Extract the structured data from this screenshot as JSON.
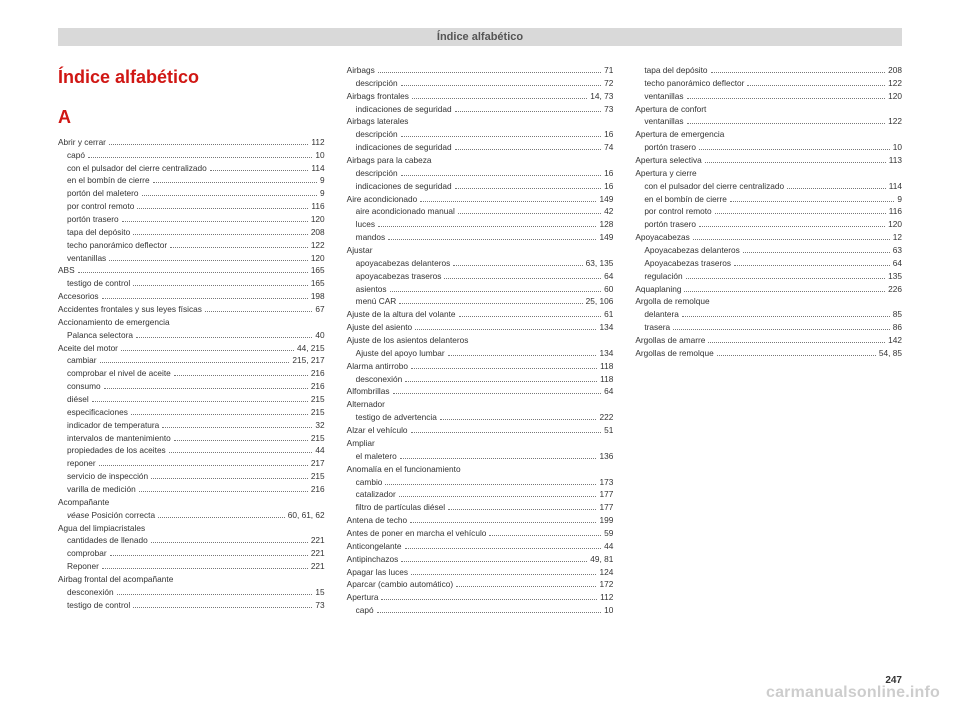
{
  "header": "Índice alfabético",
  "title": "Índice alfabético",
  "section": "A",
  "pagenum": "247",
  "watermark": "carmanualsonline.info",
  "entries": [
    {
      "t": "Abrir y cerrar",
      "p": "112",
      "s": 0
    },
    {
      "t": "capó",
      "p": "10",
      "s": 1
    },
    {
      "t": "con el pulsador del cierre centralizado",
      "p": "114",
      "s": 1
    },
    {
      "t": "en el bombín de cierre",
      "p": "9",
      "s": 1
    },
    {
      "t": "portón del maletero",
      "p": "9",
      "s": 1
    },
    {
      "t": "por control remoto",
      "p": "116",
      "s": 1
    },
    {
      "t": "portón trasero",
      "p": "120",
      "s": 1
    },
    {
      "t": "tapa del depósito",
      "p": "208",
      "s": 1
    },
    {
      "t": "techo panorámico deflector",
      "p": "122",
      "s": 1
    },
    {
      "t": "ventanillas",
      "p": "120",
      "s": 1
    },
    {
      "t": "ABS",
      "p": "165",
      "s": 0
    },
    {
      "t": "testigo de control",
      "p": "165",
      "s": 1
    },
    {
      "t": "Accesorios",
      "p": "198",
      "s": 0
    },
    {
      "t": "Accidentes frontales y sus leyes físicas",
      "p": "67",
      "s": 0
    },
    {
      "t": "Accionamiento de emergencia",
      "p": "",
      "s": 0,
      "nodots": true
    },
    {
      "t": "Palanca selectora",
      "p": "40",
      "s": 1
    },
    {
      "t": "Aceite del motor",
      "p": "44, 215",
      "s": 0
    },
    {
      "t": "cambiar",
      "p": "215, 217",
      "s": 1
    },
    {
      "t": "comprobar el nivel de aceite",
      "p": "216",
      "s": 1
    },
    {
      "t": "consumo",
      "p": "216",
      "s": 1
    },
    {
      "t": "diésel",
      "p": "215",
      "s": 1
    },
    {
      "t": "especificaciones",
      "p": "215",
      "s": 1
    },
    {
      "t": "indicador de temperatura",
      "p": "32",
      "s": 1
    },
    {
      "t": "intervalos de mantenimiento",
      "p": "215",
      "s": 1
    },
    {
      "t": "propiedades de los aceites",
      "p": "44",
      "s": 1
    },
    {
      "t": "reponer",
      "p": "217",
      "s": 1
    },
    {
      "t": "servicio de inspección",
      "p": "215",
      "s": 1
    },
    {
      "t": "varilla de medición",
      "p": "216",
      "s": 1
    },
    {
      "t": "Acompañante",
      "p": "",
      "s": 0,
      "nodots": true
    },
    {
      "t": "véase |Posición correcta",
      "p": "60, 61, 62",
      "s": 1,
      "italicFirst": true
    },
    {
      "t": "Agua del limpiacristales",
      "p": "",
      "s": 0,
      "nodots": true
    },
    {
      "t": "cantidades de llenado",
      "p": "221",
      "s": 1
    },
    {
      "t": "comprobar",
      "p": "221",
      "s": 1
    },
    {
      "t": "Reponer",
      "p": "221",
      "s": 1
    },
    {
      "t": "Airbag frontal del acompañante",
      "p": "",
      "s": 0,
      "nodots": true
    },
    {
      "t": "desconexión",
      "p": "15",
      "s": 1
    },
    {
      "t": "testigo de control",
      "p": "73",
      "s": 1
    },
    {
      "t": "Airbags",
      "p": "71",
      "s": 0
    },
    {
      "t": "descripción",
      "p": "72",
      "s": 1
    },
    {
      "t": "Airbags frontales",
      "p": "14, 73",
      "s": 0
    },
    {
      "t": "indicaciones de seguridad",
      "p": "73",
      "s": 1
    },
    {
      "t": "Airbags laterales",
      "p": "",
      "s": 0,
      "nodots": true
    },
    {
      "t": "descripción",
      "p": "16",
      "s": 1
    },
    {
      "t": "indicaciones de seguridad",
      "p": "74",
      "s": 1
    },
    {
      "t": "Airbags para la cabeza",
      "p": "",
      "s": 0,
      "nodots": true
    },
    {
      "t": "descripción",
      "p": "16",
      "s": 1
    },
    {
      "t": "indicaciones de seguridad",
      "p": "16",
      "s": 1
    },
    {
      "t": "Aire acondicionado",
      "p": "149",
      "s": 0
    },
    {
      "t": "aire acondicionado manual",
      "p": "42",
      "s": 1
    },
    {
      "t": "luces",
      "p": "128",
      "s": 1
    },
    {
      "t": "mandos",
      "p": "149",
      "s": 1
    },
    {
      "t": "Ajustar",
      "p": "",
      "s": 0,
      "nodots": true
    },
    {
      "t": "apoyacabezas delanteros",
      "p": "63, 135",
      "s": 1
    },
    {
      "t": "apoyacabezas traseros",
      "p": "64",
      "s": 1
    },
    {
      "t": "asientos",
      "p": "60",
      "s": 1
    },
    {
      "t": "menú CAR",
      "p": "25, 106",
      "s": 1
    },
    {
      "t": "Ajuste de la altura del volante",
      "p": "61",
      "s": 0
    },
    {
      "t": "Ajuste del asiento",
      "p": "134",
      "s": 0
    },
    {
      "t": "Ajuste de los asientos delanteros",
      "p": "",
      "s": 0,
      "nodots": true
    },
    {
      "t": "Ajuste del apoyo lumbar",
      "p": "134",
      "s": 1
    },
    {
      "t": "Alarma antirrobo",
      "p": "118",
      "s": 0
    },
    {
      "t": "desconexión",
      "p": "118",
      "s": 1
    },
    {
      "t": "Alfombrillas",
      "p": "64",
      "s": 0
    },
    {
      "t": "Alternador",
      "p": "",
      "s": 0,
      "nodots": true
    },
    {
      "t": "testigo de advertencia",
      "p": "222",
      "s": 1
    },
    {
      "t": "Alzar el vehículo",
      "p": "51",
      "s": 0
    },
    {
      "t": "Ampliar",
      "p": "",
      "s": 0,
      "nodots": true
    },
    {
      "t": "el maletero",
      "p": "136",
      "s": 1
    },
    {
      "t": "Anomalía en el funcionamiento",
      "p": "",
      "s": 0,
      "nodots": true
    },
    {
      "t": "cambio",
      "p": "173",
      "s": 1
    },
    {
      "t": "catalizador",
      "p": "177",
      "s": 1
    },
    {
      "t": "filtro de partículas diésel",
      "p": "177",
      "s": 1
    },
    {
      "t": "Antena de techo",
      "p": "199",
      "s": 0
    },
    {
      "t": "Antes de poner en marcha el vehículo",
      "p": "59",
      "s": 0
    },
    {
      "t": "Anticongelante",
      "p": "44",
      "s": 0
    },
    {
      "t": "Antipinchazos",
      "p": "49, 81",
      "s": 0
    },
    {
      "t": "Apagar las luces",
      "p": "124",
      "s": 0
    },
    {
      "t": "Aparcar (cambio automático)",
      "p": "172",
      "s": 0
    },
    {
      "t": "Apertura",
      "p": "112",
      "s": 0
    },
    {
      "t": "capó",
      "p": "10",
      "s": 1
    },
    {
      "t": "tapa del depósito",
      "p": "208",
      "s": 1
    },
    {
      "t": "techo panorámico deflector",
      "p": "122",
      "s": 1
    },
    {
      "t": "ventanillas",
      "p": "120",
      "s": 1
    },
    {
      "t": "Apertura de confort",
      "p": "",
      "s": 0,
      "nodots": true
    },
    {
      "t": "ventanillas",
      "p": "122",
      "s": 1
    },
    {
      "t": "Apertura de emergencia",
      "p": "",
      "s": 0,
      "nodots": true
    },
    {
      "t": "portón trasero",
      "p": "10",
      "s": 1
    },
    {
      "t": "Apertura selectiva",
      "p": "113",
      "s": 0
    },
    {
      "t": "Apertura y cierre",
      "p": "",
      "s": 0,
      "nodots": true
    },
    {
      "t": "con el pulsador del cierre centralizado",
      "p": "114",
      "s": 1
    },
    {
      "t": "en el bombín de cierre",
      "p": "9",
      "s": 1
    },
    {
      "t": "por control remoto",
      "p": "116",
      "s": 1
    },
    {
      "t": "portón trasero",
      "p": "120",
      "s": 1
    },
    {
      "t": "Apoyacabezas",
      "p": "12",
      "s": 0
    },
    {
      "t": "Apoyacabezas delanteros",
      "p": "63",
      "s": 1
    },
    {
      "t": "Apoyacabezas traseros",
      "p": "64",
      "s": 1
    },
    {
      "t": "regulación",
      "p": "135",
      "s": 1
    },
    {
      "t": "Aquaplaning",
      "p": "226",
      "s": 0
    },
    {
      "t": "Argolla de remolque",
      "p": "",
      "s": 0,
      "nodots": true
    },
    {
      "t": "delantera",
      "p": "85",
      "s": 1
    },
    {
      "t": "trasera",
      "p": "86",
      "s": 1
    },
    {
      "t": "Argollas de amarre",
      "p": "142",
      "s": 0
    },
    {
      "t": "Argollas de remolque",
      "p": "54, 85",
      "s": 0
    }
  ]
}
